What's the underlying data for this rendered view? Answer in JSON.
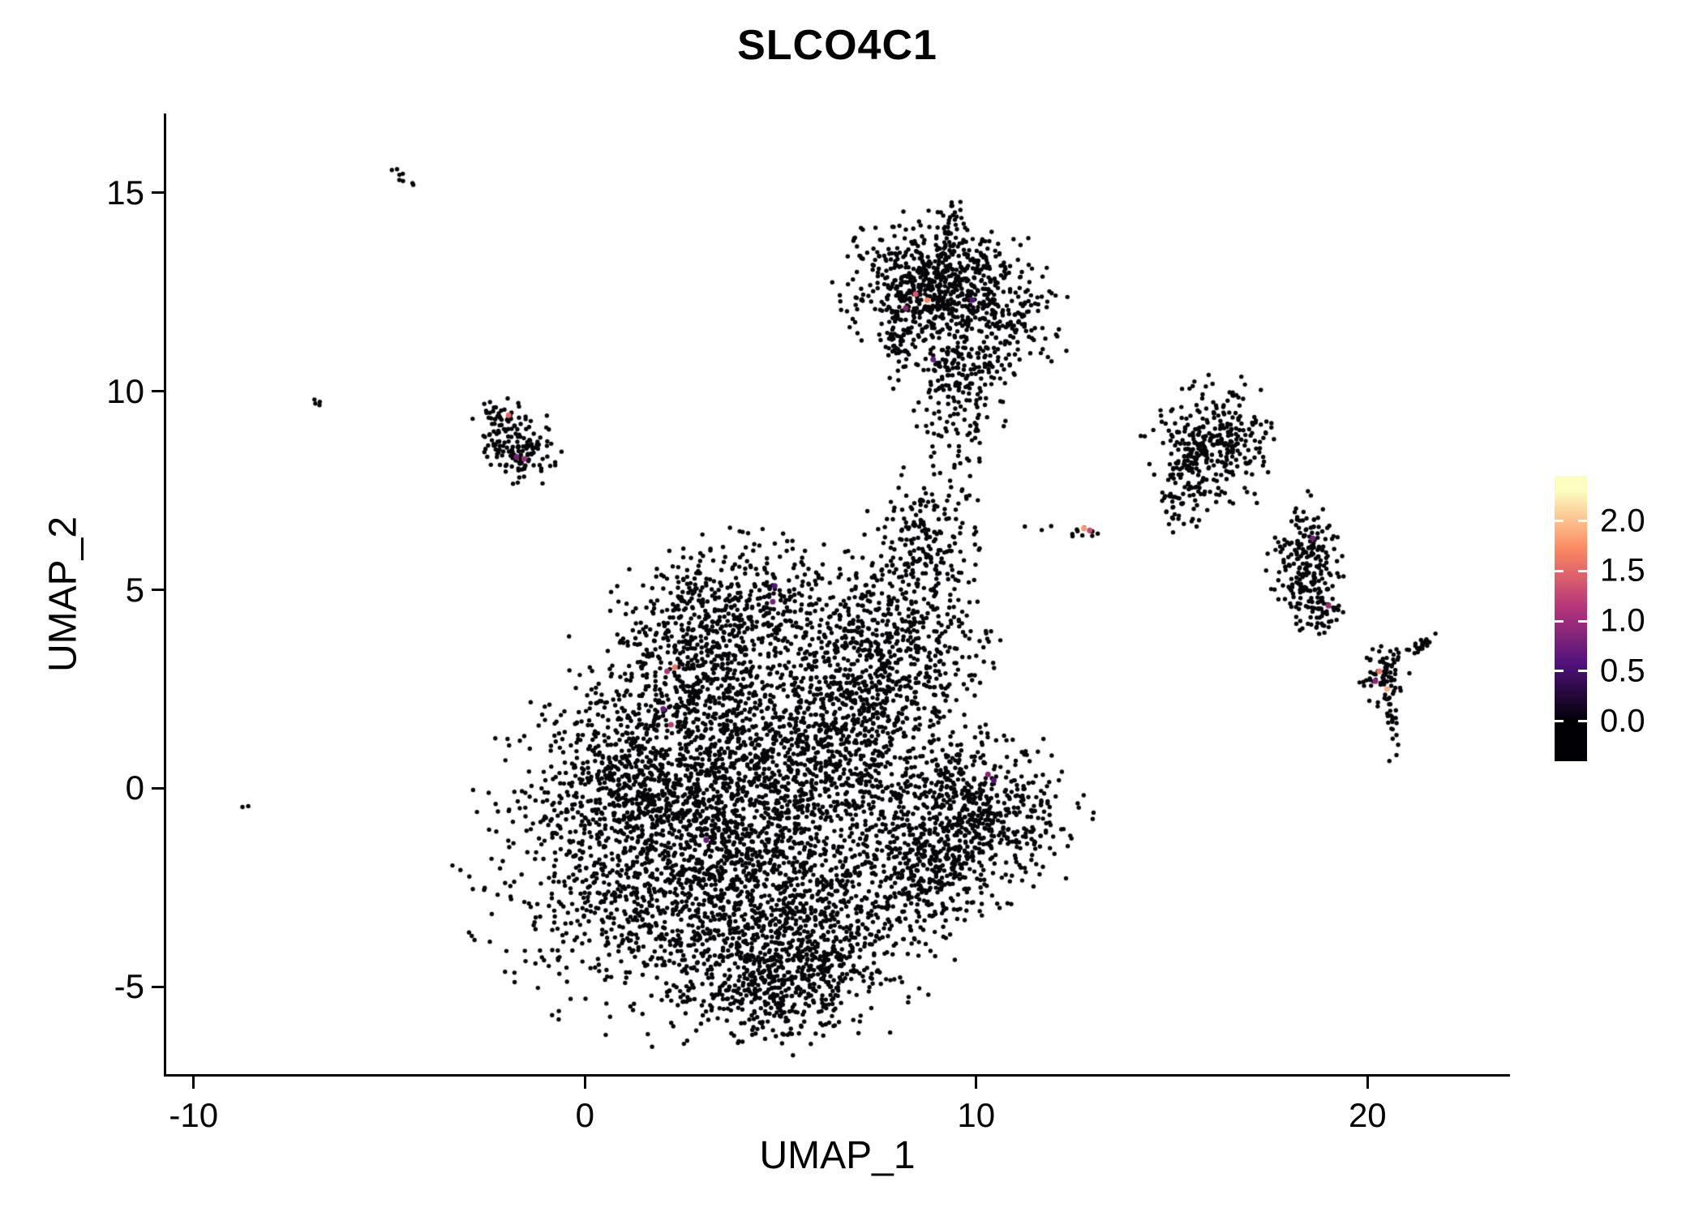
{
  "title": "SLCO4C1",
  "x_axis": {
    "label": "UMAP_1",
    "ticks": [
      {
        "label": "-10",
        "value": -10
      },
      {
        "label": "0",
        "value": 0
      },
      {
        "label": "10",
        "value": 10
      },
      {
        "label": "20",
        "value": 20
      }
    ]
  },
  "y_axis": {
    "label": "UMAP_2",
    "ticks": [
      {
        "label": "-5",
        "value": -5
      },
      {
        "label": "0",
        "value": 0
      },
      {
        "label": "5",
        "value": 5
      },
      {
        "label": "10",
        "value": 10
      },
      {
        "label": "15",
        "value": 15
      }
    ]
  },
  "colorbar": {
    "bar_min": -0.4,
    "bar_max": 2.45,
    "ticks": [
      {
        "label": "2.0",
        "value": 2.0
      },
      {
        "label": "1.5",
        "value": 1.5
      },
      {
        "label": "1.0",
        "value": 1.0
      },
      {
        "label": "0.5",
        "value": 0.5
      },
      {
        "label": "0.0",
        "value": 0.0
      }
    ]
  },
  "chart_data": {
    "type": "scatter",
    "title": "SLCO4C1",
    "xlabel": "UMAP_1",
    "ylabel": "UMAP_2",
    "xlim": [
      -10.7,
      23.6
    ],
    "ylim": [
      -7.2,
      17.0
    ],
    "x_ticks": [
      -10,
      0,
      10,
      20
    ],
    "y_ticks": [
      -5,
      0,
      5,
      10,
      15
    ],
    "legend_position": "right",
    "grid": false,
    "point_color": "#060509",
    "point_radius_px": 2.7,
    "seed": 42,
    "colormap": {
      "name": "magma-like",
      "domain": [
        0,
        2.3
      ],
      "stops": [
        "#000004",
        "#51127c",
        "#b73779",
        "#fc8961",
        "#fcfdbf"
      ]
    },
    "clusters": [
      {
        "name": "central-main",
        "cx": 2.6,
        "cy": -1.6,
        "sx": 2.3,
        "sy": 1.9,
        "n": 2000
      },
      {
        "name": "central-lower",
        "cx": 5.6,
        "cy": -3.6,
        "sx": 1.5,
        "sy": 1.2,
        "n": 800
      },
      {
        "name": "central-mid",
        "cx": 4.5,
        "cy": 0.8,
        "sx": 1.9,
        "sy": 1.3,
        "n": 900
      },
      {
        "name": "central-upper-lobe",
        "cx": 4.2,
        "cy": 4.6,
        "sx": 1.5,
        "sy": 0.8,
        "n": 450
      },
      {
        "name": "central-upper-left",
        "cx": 3.0,
        "cy": 3.2,
        "sx": 1.0,
        "sy": 0.9,
        "n": 350
      },
      {
        "name": "central-right-col",
        "cx": 6.9,
        "cy": 1.8,
        "sx": 0.9,
        "sy": 1.5,
        "n": 450
      },
      {
        "name": "central-right-upper",
        "cx": 8.1,
        "cy": 3.4,
        "sx": 1.1,
        "sy": 0.9,
        "n": 420
      },
      {
        "name": "lower-right-lobe",
        "cx": 9.9,
        "cy": -0.6,
        "sx": 1.2,
        "sy": 1.0,
        "n": 650
      },
      {
        "name": "lower-right-bridge",
        "cx": 8.6,
        "cy": -2.0,
        "sx": 0.8,
        "sy": 0.9,
        "n": 300
      },
      {
        "name": "central-appendage-up",
        "cx": 8.7,
        "cy": 6.0,
        "sx": 0.7,
        "sy": 0.9,
        "n": 220
      },
      {
        "name": "central-left-edge",
        "cx": 1.0,
        "cy": 0.5,
        "sx": 1.0,
        "sy": 1.5,
        "n": 350
      },
      {
        "name": "central-bottom-tip",
        "cx": 4.7,
        "cy": -5.0,
        "sx": 1.0,
        "sy": 0.6,
        "n": 250
      },
      {
        "name": "top-cluster-left",
        "cx": 8.8,
        "cy": 12.7,
        "sx": 1.0,
        "sy": 0.75,
        "n": 550
      },
      {
        "name": "top-cluster-right",
        "cx": 10.2,
        "cy": 11.9,
        "sx": 0.9,
        "sy": 0.9,
        "n": 350
      },
      {
        "name": "top-cluster-tail",
        "cx": 9.6,
        "cy": 10.2,
        "sx": 0.55,
        "sy": 0.8,
        "n": 150
      },
      {
        "name": "top-cluster-spike",
        "cx": 9.4,
        "cy": 14.1,
        "sx": 0.25,
        "sy": 0.4,
        "n": 35
      },
      {
        "name": "top-cluster-left-line",
        "cx": 8.0,
        "cy": 11.3,
        "sx": 0.2,
        "sy": 0.6,
        "n": 60
      },
      {
        "name": "bridge-sparse",
        "cx": 9.3,
        "cy": 8.3,
        "sx": 0.5,
        "sy": 0.8,
        "n": 35
      },
      {
        "name": "right-cluster",
        "cx": 16.1,
        "cy": 8.7,
        "sx": 0.75,
        "sy": 0.7,
        "n": 320
      },
      {
        "name": "right-cluster-arm",
        "cx": 15.3,
        "cy": 7.5,
        "sx": 0.4,
        "sy": 0.5,
        "n": 70
      },
      {
        "name": "right-elongated",
        "cx": 18.4,
        "cy": 5.7,
        "sx": 0.4,
        "sy": 0.75,
        "n": 200
      },
      {
        "name": "right-elongated-low",
        "cx": 18.8,
        "cy": 4.7,
        "sx": 0.3,
        "sy": 0.4,
        "n": 60
      },
      {
        "name": "far-right-clump",
        "cx": 20.4,
        "cy": 2.8,
        "sx": 0.3,
        "sy": 0.35,
        "n": 70
      },
      {
        "name": "far-right-streak",
        "cx": 21.3,
        "cy": 3.6,
        "sx": 0.38,
        "sy": 0.1,
        "n": 25,
        "rot": 25
      },
      {
        "name": "far-right-tail",
        "cx": 20.6,
        "cy": 1.9,
        "sx": 0.12,
        "sy": 0.5,
        "n": 22
      },
      {
        "name": "left-small-cluster",
        "cx": -1.7,
        "cy": 8.6,
        "sx": 0.45,
        "sy": 0.45,
        "n": 130
      },
      {
        "name": "left-small-upper",
        "cx": -2.2,
        "cy": 9.3,
        "sx": 0.3,
        "sy": 0.25,
        "n": 45
      },
      {
        "name": "tiny-streak-topleft",
        "cx": -4.7,
        "cy": 15.4,
        "sx": 0.2,
        "sy": 0.05,
        "n": 8,
        "rot": -35
      },
      {
        "name": "tiny-pair-left",
        "cx": -6.8,
        "cy": 9.7,
        "sx": 0.15,
        "sy": 0.04,
        "n": 4,
        "rot": -40
      },
      {
        "name": "single-dot-left",
        "cx": -8.7,
        "cy": -0.45,
        "sx": 0.05,
        "sy": 0.05,
        "n": 2
      },
      {
        "name": "mid-right-clump",
        "cx": 12.8,
        "cy": 6.5,
        "sx": 0.2,
        "sy": 0.12,
        "n": 10
      },
      {
        "name": "mid-right-dots",
        "cx": 11.6,
        "cy": 6.6,
        "sx": 0.3,
        "sy": 0.08,
        "n": 4
      }
    ],
    "expressing_cells": [
      {
        "x": -1.95,
        "y": 9.4,
        "value": 1.5
      },
      {
        "x": -1.75,
        "y": 8.35,
        "value": 0.8
      },
      {
        "x": -1.55,
        "y": 8.3,
        "value": 1.0
      },
      {
        "x": 8.45,
        "y": 12.45,
        "value": 1.4
      },
      {
        "x": 8.75,
        "y": 12.3,
        "value": 1.7
      },
      {
        "x": 8.2,
        "y": 12.1,
        "value": 0.9
      },
      {
        "x": 9.9,
        "y": 12.3,
        "value": 0.6
      },
      {
        "x": 8.9,
        "y": 10.8,
        "value": 0.7
      },
      {
        "x": 12.75,
        "y": 6.55,
        "value": 1.8
      },
      {
        "x": 12.9,
        "y": 6.5,
        "value": 1.3
      },
      {
        "x": 2.3,
        "y": 3.05,
        "value": 1.6
      },
      {
        "x": 2.1,
        "y": 2.95,
        "value": 1.1
      },
      {
        "x": 2.2,
        "y": 1.6,
        "value": 1.2
      },
      {
        "x": 2.0,
        "y": 2.0,
        "value": 0.7
      },
      {
        "x": 4.8,
        "y": 4.7,
        "value": 0.8
      },
      {
        "x": 4.85,
        "y": 5.1,
        "value": 0.6
      },
      {
        "x": 3.1,
        "y": -1.3,
        "value": 0.7
      },
      {
        "x": 10.3,
        "y": 0.35,
        "value": 0.9
      },
      {
        "x": 10.45,
        "y": 0.2,
        "value": 0.6
      },
      {
        "x": 20.3,
        "y": 2.95,
        "value": 1.6
      },
      {
        "x": 20.5,
        "y": 2.5,
        "value": 1.9
      },
      {
        "x": 20.2,
        "y": 2.7,
        "value": 0.9
      },
      {
        "x": 18.6,
        "y": 6.3,
        "value": 0.8
      },
      {
        "x": 19.0,
        "y": 4.6,
        "value": 1.0
      }
    ]
  }
}
